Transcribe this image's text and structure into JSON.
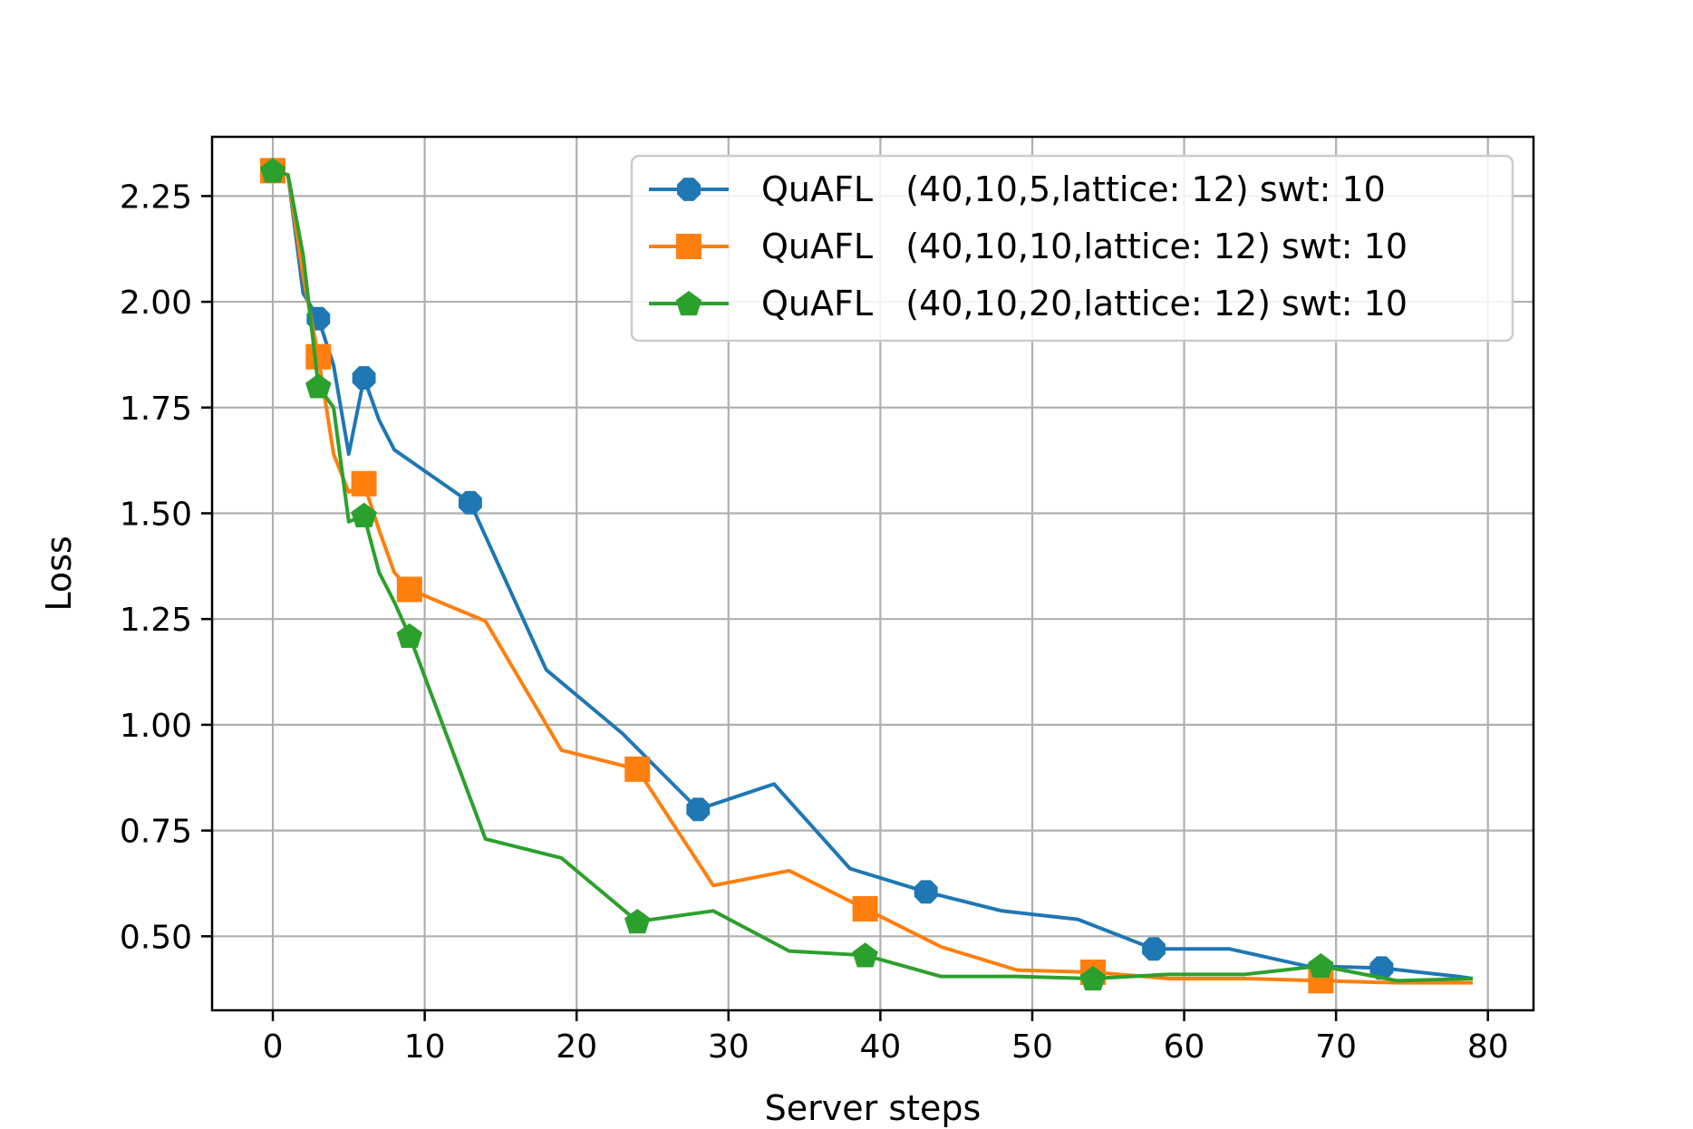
{
  "chart_data": {
    "type": "line",
    "title": "",
    "xlabel": "Server steps",
    "ylabel": "Loss",
    "xlim": [
      -4,
      83
    ],
    "ylim": [
      0.325,
      2.39
    ],
    "xticks": [
      0,
      10,
      20,
      30,
      40,
      50,
      60,
      70,
      80
    ],
    "xtick_labels": [
      "0",
      "10",
      "20",
      "30",
      "40",
      "50",
      "60",
      "70",
      "80"
    ],
    "yticks": [
      0.5,
      0.75,
      1.0,
      1.25,
      1.5,
      1.75,
      2.0,
      2.25
    ],
    "ytick_labels": [
      "0.50",
      "0.75",
      "1.00",
      "1.25",
      "1.50",
      "1.75",
      "2.00",
      "2.25"
    ],
    "grid": true,
    "legend_position": "top-right",
    "series": [
      {
        "name": "QuAFL   (40,10,5,lattice: 12) swt: 10",
        "color": "#1f77b4",
        "marker": "octagon",
        "x": [
          0,
          1,
          2,
          3,
          4,
          5,
          6,
          7,
          8,
          13,
          18,
          23,
          28,
          33,
          38,
          43,
          48,
          53,
          58,
          63,
          68,
          73,
          78,
          79
        ],
        "y": [
          2.31,
          2.3,
          2.02,
          1.96,
          1.85,
          1.64,
          1.82,
          1.72,
          1.65,
          1.525,
          1.13,
          0.98,
          0.8,
          0.86,
          0.66,
          0.605,
          0.56,
          0.54,
          0.47,
          0.47,
          0.43,
          0.425,
          0.405,
          0.4
        ],
        "marker_x": [
          0,
          3,
          6,
          13,
          28,
          43,
          58,
          73
        ],
        "marker_y": [
          2.31,
          1.96,
          1.82,
          1.525,
          0.8,
          0.605,
          0.47,
          0.425
        ]
      },
      {
        "name": "QuAFL   (40,10,10,lattice: 12) swt: 10",
        "color": "#ff7f0e",
        "marker": "square",
        "x": [
          0,
          1,
          2,
          3,
          4,
          5,
          6,
          7,
          8,
          9,
          14,
          19,
          24,
          29,
          34,
          39,
          44,
          49,
          54,
          59,
          64,
          69,
          74,
          79
        ],
        "y": [
          2.31,
          2.3,
          2.06,
          1.87,
          1.64,
          1.55,
          1.57,
          1.46,
          1.36,
          1.32,
          1.245,
          0.94,
          0.895,
          0.62,
          0.655,
          0.565,
          0.475,
          0.42,
          0.415,
          0.4,
          0.4,
          0.395,
          0.39,
          0.39
        ],
        "marker_x": [
          0,
          3,
          6,
          9,
          24,
          39,
          54,
          69
        ],
        "marker_y": [
          2.31,
          1.87,
          1.57,
          1.32,
          0.895,
          0.565,
          0.415,
          0.395
        ]
      },
      {
        "name": "QuAFL   (40,10,20,lattice: 12) swt: 10",
        "color": "#2ca02c",
        "marker": "pentagon",
        "x": [
          0,
          1,
          2,
          3,
          4,
          5,
          6,
          7,
          8,
          9,
          14,
          19,
          24,
          29,
          34,
          39,
          44,
          49,
          54,
          59,
          64,
          69,
          74,
          79
        ],
        "y": [
          2.31,
          2.3,
          2.11,
          1.8,
          1.75,
          1.48,
          1.495,
          1.36,
          1.29,
          1.21,
          0.73,
          0.685,
          0.535,
          0.56,
          0.465,
          0.455,
          0.405,
          0.405,
          0.4,
          0.41,
          0.41,
          0.43,
          0.395,
          0.4
        ],
        "marker_x": [
          0,
          3,
          6,
          9,
          24,
          39,
          54,
          69
        ],
        "marker_y": [
          2.31,
          1.8,
          1.495,
          1.21,
          0.535,
          0.455,
          0.4,
          0.43
        ]
      }
    ]
  }
}
